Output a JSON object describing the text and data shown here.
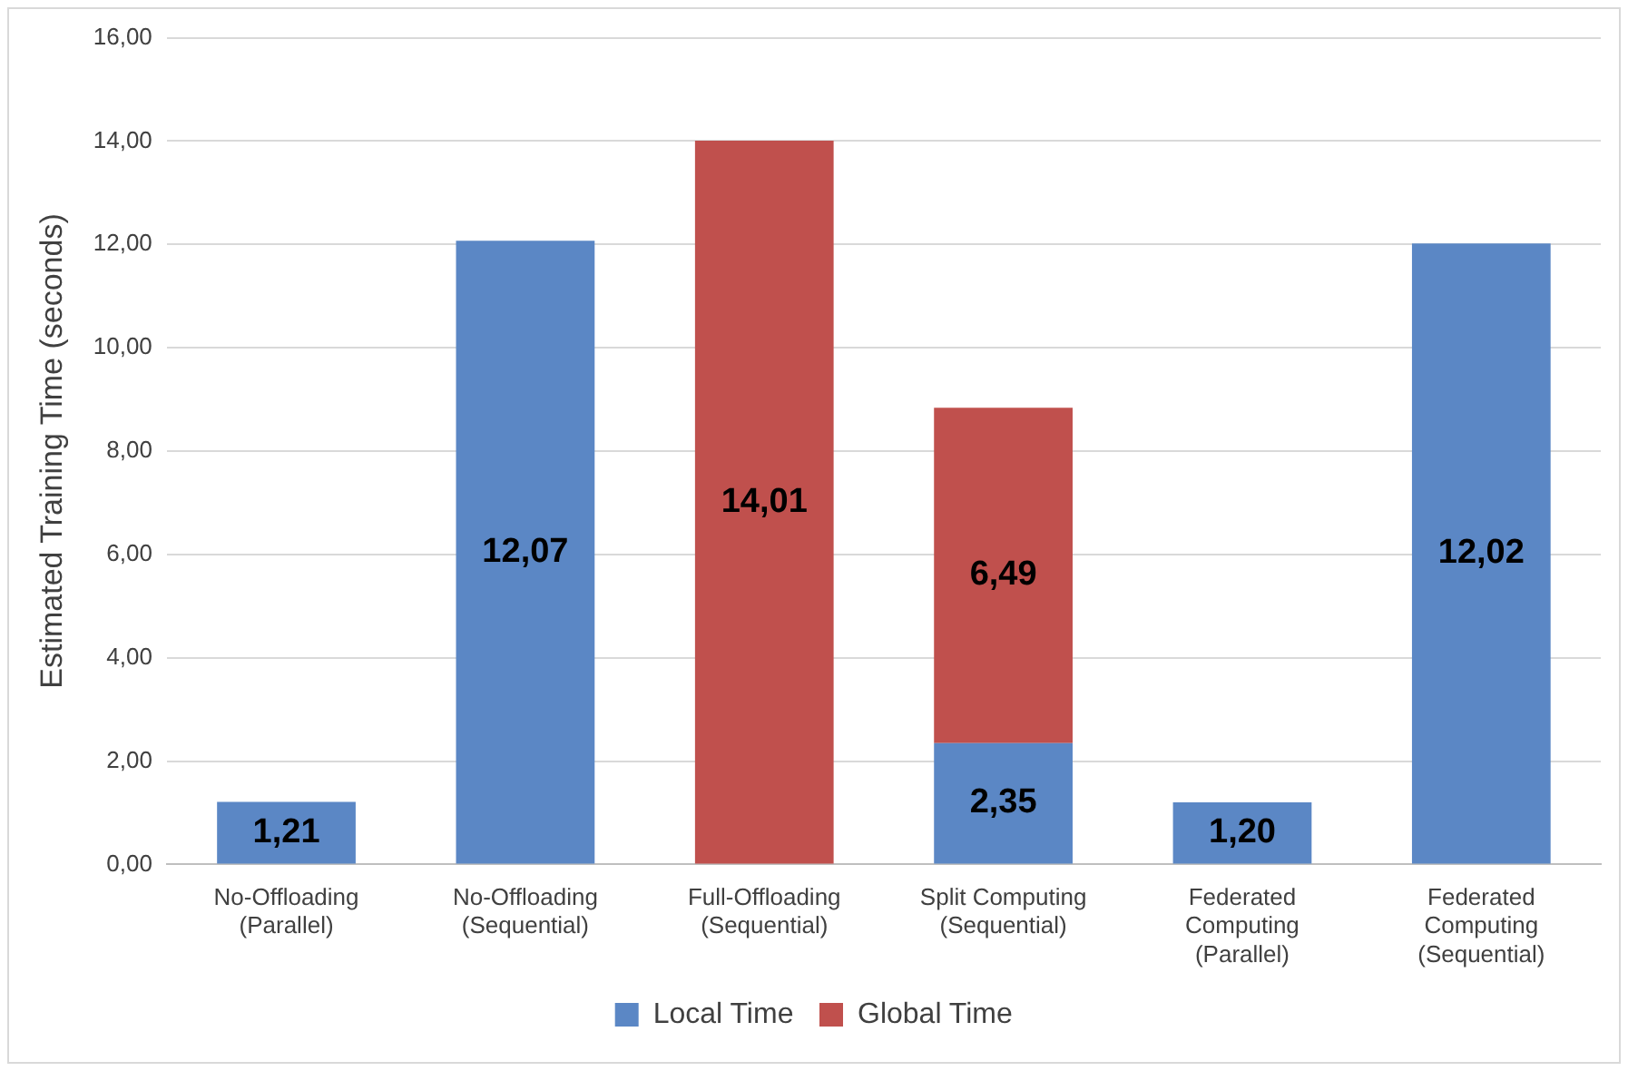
{
  "chart_data": {
    "type": "bar",
    "stacked": true,
    "ylabel": "Estimated Training Time (seconds)",
    "categories": [
      "No-Offloading (Parallel)",
      "No-Offloading (Sequential)",
      "Full-Offloading (Sequential)",
      "Split Computing (Sequential)",
      "Federated Computing (Parallel)",
      "Federated Computing (Sequential)"
    ],
    "series": [
      {
        "name": "Local Time",
        "color": "#5b87c5",
        "values": [
          1.21,
          12.07,
          null,
          2.35,
          1.2,
          12.02
        ],
        "value_labels": [
          "1,21",
          "12,07",
          null,
          "2,35",
          "1,20",
          "12,02"
        ]
      },
      {
        "name": "Global Time",
        "color": "#c0504d",
        "values": [
          null,
          null,
          14.01,
          6.49,
          null,
          null
        ],
        "value_labels": [
          null,
          null,
          "14,01",
          "6,49",
          null,
          null
        ]
      }
    ],
    "ylim": [
      0,
      16
    ],
    "yticks": [
      {
        "value": 0,
        "label": "0,00"
      },
      {
        "value": 2,
        "label": "2,00"
      },
      {
        "value": 4,
        "label": "4,00"
      },
      {
        "value": 6,
        "label": "6,00"
      },
      {
        "value": 8,
        "label": "8,00"
      },
      {
        "value": 10,
        "label": "10,00"
      },
      {
        "value": 12,
        "label": "12,00"
      },
      {
        "value": 14,
        "label": "14,00"
      },
      {
        "value": 16,
        "label": "16,00"
      }
    ],
    "grid": "y",
    "legend": "bottom"
  }
}
